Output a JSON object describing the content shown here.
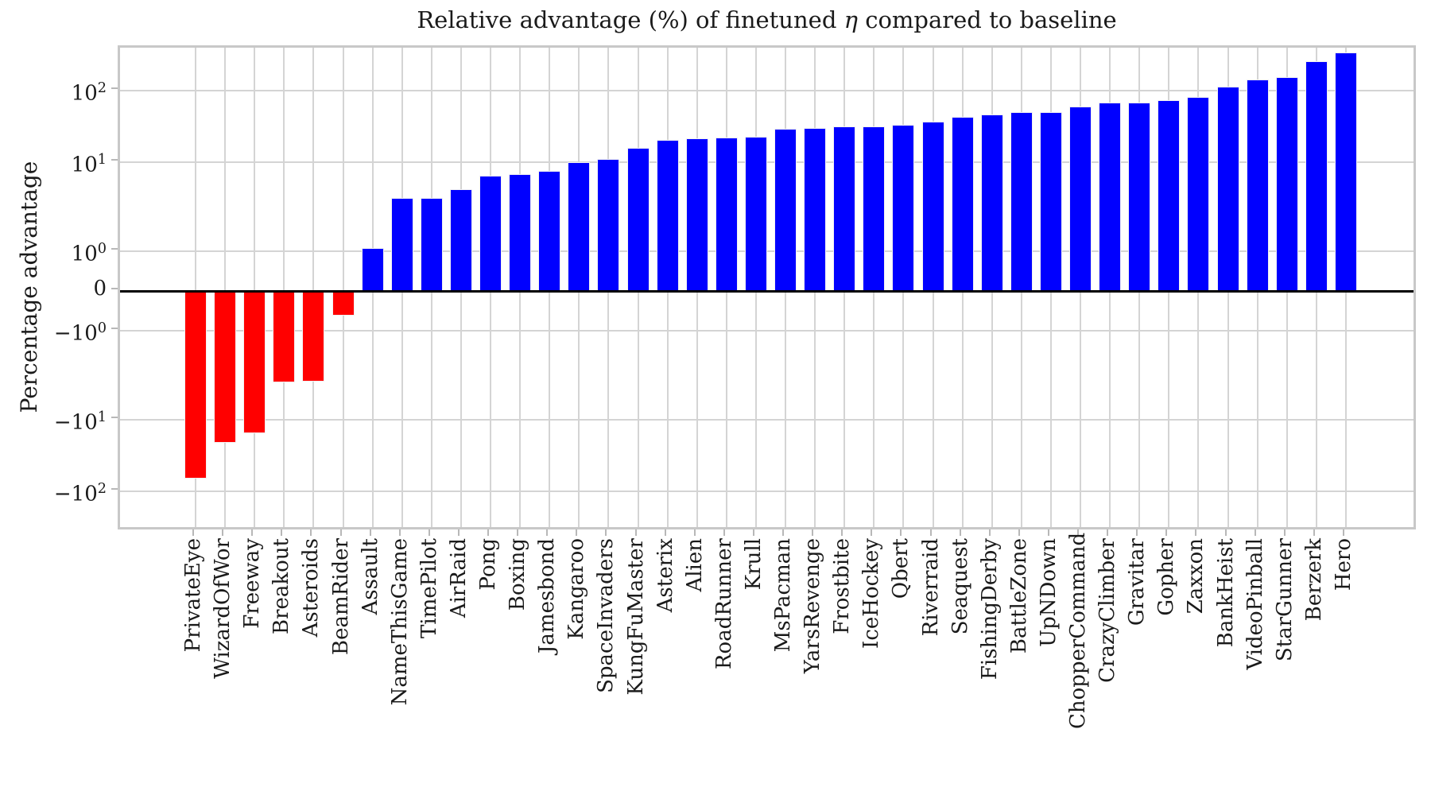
{
  "title": {
    "prefix": "Relative advantage (%) of finetuned ",
    "symbol": "η",
    "suffix": " compared to baseline"
  },
  "chart_data": {
    "type": "bar",
    "title": "Relative advantage (%) of finetuned η compared to baseline",
    "xlabel": "",
    "ylabel": "Percentage advantage",
    "yscale": "symlog-like (linear within ±1, compressed log decades beyond)",
    "grid": true,
    "legend": "none",
    "xtick_rotation": 90,
    "ylim_approx": [
      -580,
      560
    ],
    "ytick_values": [
      100,
      10,
      1,
      0,
      -1,
      -10,
      -100
    ],
    "ytick_labels": [
      {
        "m": "10",
        "e": "2"
      },
      {
        "m": "10",
        "e": "1"
      },
      {
        "m": "10",
        "e": "0"
      },
      {
        "m": "0",
        "e": ""
      },
      {
        "m": "−10",
        "e": "0"
      },
      {
        "m": "−10",
        "e": "1"
      },
      {
        "m": "−10",
        "e": "2"
      }
    ],
    "categories": [
      "PrivateEye",
      "WizardOfWor",
      "Freeway",
      "Breakout",
      "Asteroids",
      "BeamRider",
      "Assault",
      "NameThisGame",
      "TimePilot",
      "AirRaid",
      "Pong",
      "Boxing",
      "Jamesbond",
      "Kangaroo",
      "SpaceInvaders",
      "KungFuMaster",
      "Asterix",
      "Alien",
      "RoadRunner",
      "Krull",
      "MsPacman",
      "YarsRevenge",
      "Frostbite",
      "IceHockey",
      "Qbert",
      "Riverraid",
      "Seaquest",
      "FishingDerby",
      "BattleZone",
      "UpNDown",
      "ChopperCommand",
      "CrazyClimber",
      "Gravitar",
      "Gopher",
      "Zaxxon",
      "BankHeist",
      "VideoPinball",
      "StarGunner",
      "Berzerk",
      "Hero"
    ],
    "values": [
      -67,
      -21,
      -15.5,
      -3.8,
      -3.7,
      -0.62,
      1.09,
      3.95,
      4.0,
      4.97,
      7.0,
      7.4,
      8.0,
      9.9,
      11.1,
      15.8,
      20.5,
      21.5,
      22.3,
      22.5,
      29.5,
      29.8,
      31.5,
      31.6,
      33.3,
      37,
      43,
      46.5,
      50,
      50.5,
      60,
      68,
      68.5,
      74,
      82,
      114,
      140,
      150,
      240,
      315
    ],
    "colors": {
      "positive_bar": "#0000ff",
      "negative_bar": "#ff0000",
      "grid": "#d4d4d4",
      "spine": "#c8c8c8",
      "zero_line": "#000000",
      "text": "#1a1a1a",
      "background": "#ffffff"
    }
  }
}
